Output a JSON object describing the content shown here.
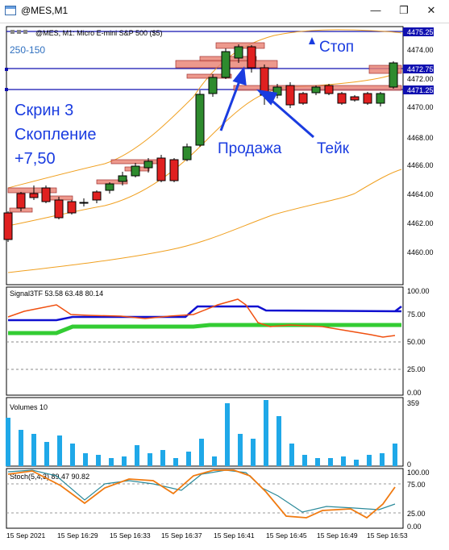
{
  "window": {
    "title": "@MES,M1",
    "minimize_glyph": "—",
    "restore_glyph": "❐",
    "close_glyph": "✕"
  },
  "main_chart": {
    "header": "@MES, M1:  Micro E-mini S&P 500 ($5)",
    "indicator_label": "250-150",
    "price_labels": [
      "4475.25",
      "4474.00",
      "4472.75",
      "4472.00",
      "4471.25",
      "4470.00",
      "4468.00",
      "4466.00",
      "4464.00",
      "4462.00",
      "4460.00"
    ],
    "highlight_prices": {
      "top": "4475.25",
      "mid": "4472.75",
      "low": "4471.25"
    },
    "annotations": {
      "screen": "Скрин 3",
      "cluster": "Скопление",
      "profit": "+7,50",
      "stop": "Стоп",
      "sell": "Продажа",
      "take": "Тейк"
    },
    "colors": {
      "bull": "#2e8b2e",
      "bear": "#e02020",
      "band": "#f0a020",
      "annotation": "#1a3ce0",
      "zone": "#e88070"
    }
  },
  "signal_panel": {
    "header": "Signal3TF 53.58 63.48 80.14",
    "levels": [
      "100.00",
      "75.00",
      "50.00",
      "25.00",
      "0.00"
    ]
  },
  "volume_panel": {
    "header": "Volumes 10",
    "scale_top": "359",
    "scale_bottom": "0"
  },
  "stoch_panel": {
    "header": "Stoch(5,4,3) 89.47 90.82",
    "levels": [
      "100.00",
      "75.00",
      "25.00",
      "0.00"
    ]
  },
  "time_axis": [
    "15 Sep 2021",
    "15 Sep 16:29",
    "15 Sep 16:33",
    "15 Sep 16:37",
    "15 Sep 16:41",
    "15 Sep 16:45",
    "15 Sep 16:49",
    "15 Sep 16:53"
  ]
}
